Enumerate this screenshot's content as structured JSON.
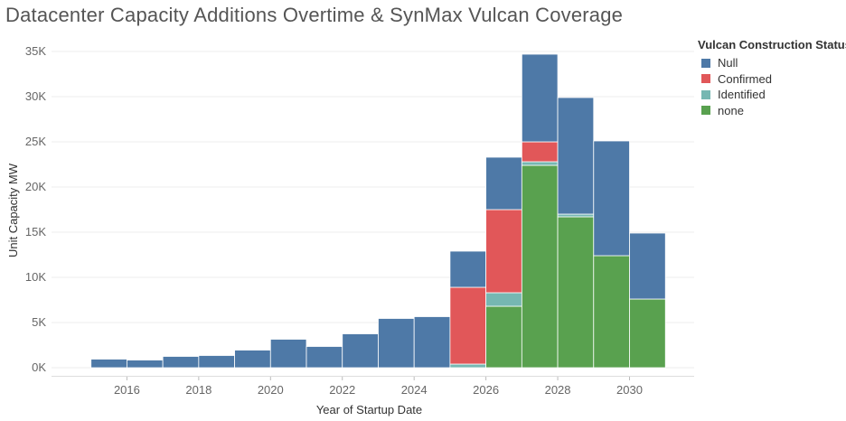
{
  "chart_data": {
    "type": "bar",
    "stacked": true,
    "title": "Datacenter Capacity Additions Overtime & SynMax Vulcan Coverage",
    "xlabel": "Year of Startup Date",
    "ylabel": "Unit Capacity MW",
    "xlim": [
      2013.9,
      2031.8
    ],
    "ylim": [
      -900,
      36100
    ],
    "x_ticks": [
      2016,
      2018,
      2020,
      2022,
      2024,
      2026,
      2028,
      2030
    ],
    "x_tick_labels": [
      "2016",
      "2018",
      "2020",
      "2022",
      "2024",
      "2026",
      "2028",
      "2030"
    ],
    "y_ticks": [
      0,
      5000,
      10000,
      15000,
      20000,
      25000,
      30000,
      35000
    ],
    "y_tick_labels": [
      "0K",
      "5K",
      "10K",
      "15K",
      "20K",
      "25K",
      "30K",
      "35K"
    ],
    "bin_width": 1,
    "bins": [
      2015,
      2016,
      2017,
      2018,
      2019,
      2020,
      2021,
      2022,
      2023,
      2024,
      2025,
      2026,
      2027,
      2028,
      2029,
      2030
    ],
    "series": [
      {
        "name": "none",
        "color": "#59a14f",
        "values": [
          0,
          0,
          0,
          0,
          0,
          0,
          0,
          0,
          0,
          0,
          0,
          6800,
          22400,
          16700,
          12400,
          7600
        ]
      },
      {
        "name": "Identified",
        "color": "#76b7b2",
        "values": [
          0,
          0,
          0,
          0,
          0,
          0,
          0,
          0,
          0,
          0,
          400,
          1500,
          400,
          300,
          0,
          0
        ]
      },
      {
        "name": "Confirmed",
        "color": "#e15759",
        "values": [
          0,
          0,
          0,
          0,
          0,
          0,
          0,
          0,
          0,
          0,
          8500,
          9200,
          2200,
          0,
          0,
          0
        ]
      },
      {
        "name": "Null",
        "color": "#4e79a7",
        "values": [
          950,
          850,
          1250,
          1350,
          1950,
          3150,
          2350,
          3750,
          5450,
          5650,
          4000,
          5800,
          9700,
          12900,
          12700,
          7300
        ]
      }
    ]
  },
  "legend": {
    "title": "Vulcan Construction Status",
    "items": [
      {
        "label": "Null",
        "color": "#4e79a7"
      },
      {
        "label": "Confirmed",
        "color": "#e15759"
      },
      {
        "label": "Identified",
        "color": "#76b7b2"
      },
      {
        "label": "none",
        "color": "#59a14f"
      }
    ]
  }
}
